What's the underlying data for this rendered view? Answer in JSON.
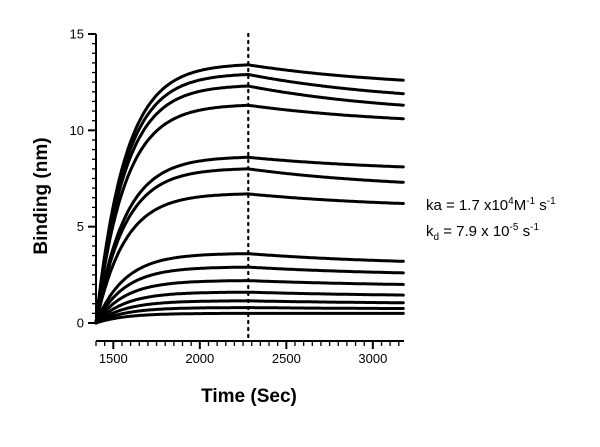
{
  "chart_data": {
    "type": "line",
    "xlabel": "Time (Sec)",
    "ylabel": "Binding (nm)",
    "xlim": [
      1400,
      3180
    ],
    "ylim": [
      0,
      15
    ],
    "xticks": [
      1500,
      2000,
      2500,
      3000
    ],
    "yticks": [
      0,
      5,
      10,
      15
    ],
    "grid": false,
    "legend": "none",
    "dissociation_start": 2280,
    "series_color": "#000000",
    "divider_color": "#000000",
    "series": [
      {
        "x": [
          1400,
          1500,
          1700,
          2000,
          2280,
          2500,
          2800,
          3180
        ],
        "y": [
          0.0,
          7.8,
          10.9,
          12.5,
          13.4,
          13.0,
          12.8,
          12.6
        ]
      },
      {
        "x": [
          1400,
          1500,
          1700,
          2000,
          2280,
          2500,
          2800,
          3180
        ],
        "y": [
          0.0,
          7.3,
          10.4,
          12.0,
          12.9,
          12.4,
          12.1,
          11.9
        ]
      },
      {
        "x": [
          1400,
          1500,
          1700,
          2000,
          2280,
          2500,
          2800,
          3180
        ],
        "y": [
          0.0,
          6.6,
          9.8,
          11.4,
          12.3,
          11.8,
          11.5,
          11.3
        ]
      },
      {
        "x": [
          1400,
          1500,
          1700,
          2000,
          2280,
          2500,
          2800,
          3180
        ],
        "y": [
          0.0,
          5.9,
          9.1,
          10.5,
          11.3,
          11.0,
          10.8,
          10.6
        ]
      },
      {
        "x": [
          1400,
          1500,
          1700,
          2000,
          2280,
          2500,
          2800,
          3180
        ],
        "y": [
          0.0,
          3.3,
          6.3,
          7.8,
          8.6,
          8.4,
          8.2,
          8.1
        ]
      },
      {
        "x": [
          1400,
          1500,
          1700,
          2000,
          2280,
          2500,
          2800,
          3180
        ],
        "y": [
          0.0,
          2.6,
          5.3,
          7.1,
          8.0,
          7.7,
          7.5,
          7.3
        ]
      },
      {
        "x": [
          1400,
          1500,
          1700,
          2000,
          2280,
          2500,
          2800,
          3180
        ],
        "y": [
          0.0,
          1.9,
          4.0,
          5.7,
          6.7,
          6.5,
          6.3,
          6.2
        ]
      },
      {
        "x": [
          1400,
          1500,
          1700,
          2000,
          2280,
          2500,
          2800,
          3180
        ],
        "y": [
          0.0,
          1.1,
          2.3,
          3.1,
          3.6,
          3.4,
          3.3,
          3.2
        ]
      },
      {
        "x": [
          1400,
          1500,
          1700,
          2000,
          2280,
          2500,
          2800,
          3180
        ],
        "y": [
          0.0,
          0.9,
          1.8,
          2.5,
          2.9,
          2.8,
          2.7,
          2.6
        ]
      },
      {
        "x": [
          1400,
          1500,
          1700,
          2000,
          2280,
          2500,
          2800,
          3180
        ],
        "y": [
          0.0,
          0.6,
          1.2,
          1.8,
          2.2,
          2.1,
          2.0,
          2.0
        ]
      },
      {
        "x": [
          1400,
          1500,
          1700,
          2000,
          2280,
          2500,
          2800,
          3180
        ],
        "y": [
          0.0,
          0.45,
          0.95,
          1.35,
          1.6,
          1.55,
          1.5,
          1.45
        ]
      },
      {
        "x": [
          1400,
          1500,
          1700,
          2000,
          2280,
          2500,
          2800,
          3180
        ],
        "y": [
          0.0,
          0.3,
          0.65,
          0.95,
          1.15,
          1.1,
          1.05,
          1.05
        ]
      },
      {
        "x": [
          1400,
          1500,
          1700,
          2000,
          2280,
          2500,
          2800,
          3180
        ],
        "y": [
          0.0,
          0.2,
          0.45,
          0.65,
          0.8,
          0.78,
          0.75,
          0.75
        ]
      },
      {
        "x": [
          1400,
          1500,
          1700,
          2000,
          2280,
          2500,
          2800,
          3180
        ],
        "y": [
          0.0,
          0.1,
          0.25,
          0.4,
          0.5,
          0.5,
          0.5,
          0.5
        ]
      }
    ],
    "annotations": {
      "ka_prefix": "ka = 1.7 x10",
      "ka_exp": "4",
      "ka_unit": "M",
      "ka_unit_exp": "-1",
      "ka_suffix": " s",
      "ka_suffix_exp": "-1",
      "kd_k": "k",
      "kd_sub": "d",
      "kd_value": " = 7.9 x 10",
      "kd_exp": "-5",
      "kd_suffix": " s",
      "kd_suffix_exp": "-1"
    }
  }
}
